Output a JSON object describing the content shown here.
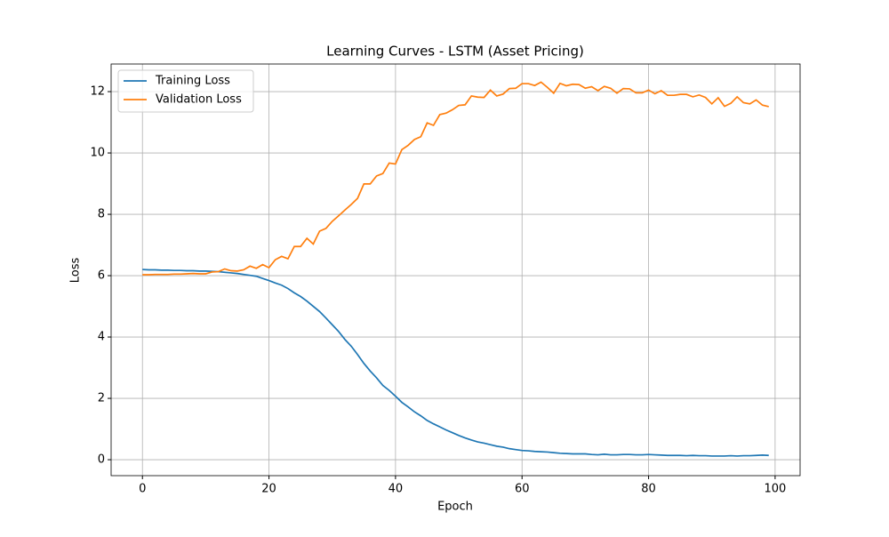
{
  "chart_data": {
    "type": "line",
    "title": "Learning Curves - LSTM (Asset Pricing)",
    "x_label": "Epoch",
    "y_label": "Loss",
    "x": [
      0,
      1,
      2,
      3,
      4,
      5,
      6,
      7,
      8,
      9,
      10,
      11,
      12,
      13,
      14,
      15,
      16,
      17,
      18,
      19,
      20,
      21,
      22,
      23,
      24,
      25,
      26,
      27,
      28,
      29,
      30,
      31,
      32,
      33,
      34,
      35,
      36,
      37,
      38,
      39,
      40,
      41,
      42,
      43,
      44,
      45,
      46,
      47,
      48,
      49,
      50,
      51,
      52,
      53,
      54,
      55,
      56,
      57,
      58,
      59,
      60,
      61,
      62,
      63,
      64,
      65,
      66,
      67,
      68,
      69,
      70,
      71,
      72,
      73,
      74,
      75,
      76,
      77,
      78,
      79,
      80,
      81,
      82,
      83,
      84,
      85,
      86,
      87,
      88,
      89,
      90,
      91,
      92,
      93,
      94,
      95,
      96,
      97,
      98,
      99
    ],
    "series": [
      {
        "name": "Training Loss",
        "color": "#1f77b4",
        "values": [
          6.2,
          6.19,
          6.19,
          6.18,
          6.18,
          6.17,
          6.17,
          6.16,
          6.16,
          6.15,
          6.15,
          6.14,
          6.13,
          6.11,
          6.09,
          6.07,
          6.04,
          6.01,
          5.98,
          5.91,
          5.84,
          5.76,
          5.69,
          5.58,
          5.44,
          5.32,
          5.17,
          5.0,
          4.83,
          4.62,
          4.4,
          4.18,
          3.92,
          3.7,
          3.43,
          3.14,
          2.89,
          2.67,
          2.42,
          2.26,
          2.07,
          1.87,
          1.72,
          1.56,
          1.43,
          1.28,
          1.17,
          1.07,
          0.97,
          0.88,
          0.79,
          0.71,
          0.64,
          0.58,
          0.54,
          0.49,
          0.44,
          0.41,
          0.36,
          0.33,
          0.3,
          0.29,
          0.27,
          0.26,
          0.25,
          0.23,
          0.21,
          0.2,
          0.19,
          0.19,
          0.19,
          0.17,
          0.16,
          0.18,
          0.16,
          0.16,
          0.17,
          0.17,
          0.16,
          0.16,
          0.17,
          0.16,
          0.15,
          0.14,
          0.14,
          0.14,
          0.13,
          0.14,
          0.13,
          0.13,
          0.12,
          0.12,
          0.12,
          0.13,
          0.12,
          0.13,
          0.13,
          0.14,
          0.15,
          0.14
        ]
      },
      {
        "name": "Validation Loss",
        "color": "#ff7f0e",
        "values": [
          6.03,
          6.03,
          6.04,
          6.04,
          6.04,
          6.05,
          6.05,
          6.06,
          6.07,
          6.06,
          6.06,
          6.12,
          6.13,
          6.22,
          6.16,
          6.15,
          6.19,
          6.31,
          6.24,
          6.36,
          6.26,
          6.52,
          6.63,
          6.55,
          6.95,
          6.95,
          7.22,
          7.03,
          7.45,
          7.54,
          7.77,
          7.95,
          8.14,
          8.32,
          8.52,
          8.99,
          8.99,
          9.25,
          9.33,
          9.67,
          9.64,
          10.11,
          10.25,
          10.44,
          10.53,
          10.98,
          10.9,
          11.25,
          11.3,
          11.41,
          11.55,
          11.57,
          11.86,
          11.82,
          11.81,
          12.05,
          11.86,
          11.92,
          12.1,
          12.11,
          12.26,
          12.26,
          12.2,
          12.31,
          12.14,
          11.95,
          12.27,
          12.19,
          12.24,
          12.23,
          12.11,
          12.16,
          12.03,
          12.17,
          12.11,
          11.95,
          12.1,
          12.09,
          11.96,
          11.96,
          12.05,
          11.93,
          12.03,
          11.88,
          11.88,
          11.91,
          11.91,
          11.83,
          11.89,
          11.81,
          11.6,
          11.8,
          11.52,
          11.62,
          11.83,
          11.64,
          11.6,
          11.73,
          11.56,
          11.51
        ]
      }
    ],
    "xlim": [
      -4.95,
      103.95
    ],
    "xticks": [
      0,
      20,
      40,
      60,
      80,
      100
    ],
    "ylim": [
      -0.52,
      12.9
    ],
    "yticks": [
      0,
      2,
      4,
      6,
      8,
      10,
      12
    ],
    "grid": true,
    "legend": "upper left"
  }
}
